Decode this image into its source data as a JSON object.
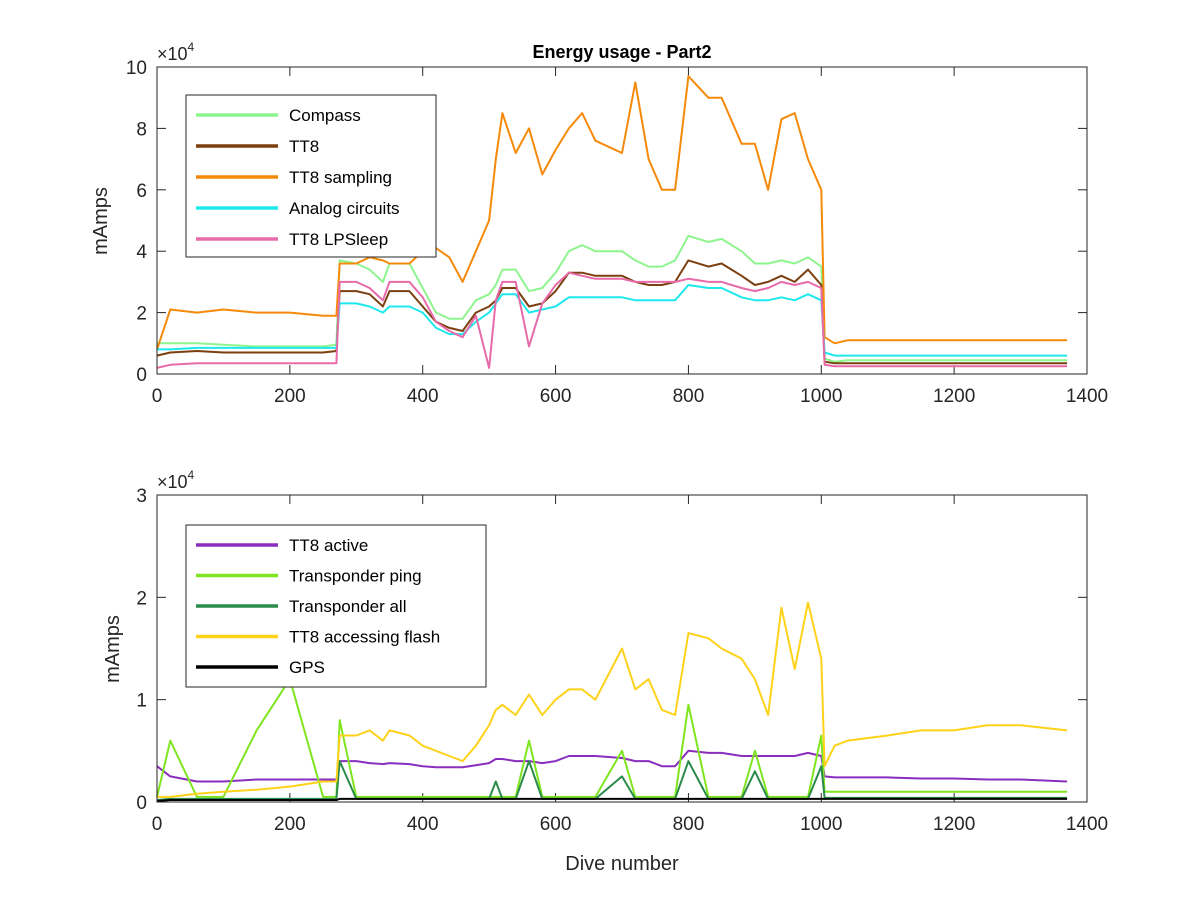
{
  "chart_data": [
    {
      "type": "line",
      "title": "Energy usage - Part2",
      "xlabel": "",
      "ylabel": "mAmps",
      "xlim": [
        0,
        1400
      ],
      "ylim": [
        0,
        100000
      ],
      "exponent_label": "×10",
      "exponent_power": "4",
      "xticks": [
        "0",
        "200",
        "400",
        "600",
        "800",
        "1000",
        "1200",
        "1400"
      ],
      "yticks": [
        "0",
        "2",
        "4",
        "6",
        "8",
        "10"
      ],
      "legend_position": "top-left",
      "x": [
        0,
        20,
        60,
        100,
        150,
        200,
        250,
        270,
        275,
        300,
        320,
        340,
        350,
        380,
        400,
        420,
        440,
        460,
        480,
        500,
        510,
        520,
        540,
        560,
        580,
        600,
        620,
        640,
        660,
        700,
        720,
        740,
        760,
        780,
        800,
        830,
        850,
        880,
        900,
        920,
        940,
        960,
        980,
        1000,
        1005,
        1020,
        1040,
        1100,
        1150,
        1200,
        1250,
        1300,
        1370
      ],
      "series": [
        {
          "name": "Compass",
          "color": "#8ef58e",
          "values": [
            10000,
            10000,
            10000,
            9500,
            9000,
            9000,
            9000,
            9500,
            37000,
            36000,
            34000,
            30000,
            36000,
            36000,
            28000,
            20000,
            18000,
            18000,
            24000,
            26000,
            29000,
            34000,
            34000,
            27000,
            28000,
            33000,
            40000,
            42000,
            40000,
            40000,
            37000,
            35000,
            35000,
            37000,
            45000,
            43000,
            44000,
            40000,
            36000,
            36000,
            37000,
            36000,
            38000,
            35000,
            5000,
            4000,
            4500,
            4500,
            4500,
            4500,
            4500,
            4500,
            4500
          ]
        },
        {
          "name": "TT8",
          "color": "#7b3f10",
          "values": [
            6000,
            7000,
            7500,
            7000,
            7000,
            7000,
            7000,
            7500,
            27000,
            27000,
            26000,
            22000,
            27000,
            27000,
            22000,
            17000,
            15000,
            14000,
            20000,
            22000,
            24000,
            28000,
            28000,
            22000,
            23000,
            27000,
            33000,
            33000,
            32000,
            32000,
            30000,
            29000,
            29000,
            30000,
            37000,
            35000,
            36000,
            32000,
            29000,
            30000,
            32000,
            30000,
            34000,
            29000,
            4000,
            3500,
            3500,
            3500,
            3500,
            3500,
            3500,
            3500,
            3500
          ]
        },
        {
          "name": "TT8 sampling",
          "color": "#f58a0a",
          "values": [
            8000,
            21000,
            20000,
            21000,
            20000,
            20000,
            19000,
            19000,
            36000,
            36000,
            38000,
            37000,
            36000,
            36000,
            40000,
            41000,
            38000,
            30000,
            40000,
            50000,
            70000,
            85000,
            72000,
            80000,
            65000,
            73000,
            80000,
            85000,
            76000,
            72000,
            95000,
            70000,
            60000,
            60000,
            97000,
            90000,
            90000,
            75000,
            75000,
            60000,
            83000,
            85000,
            70000,
            60000,
            12000,
            10000,
            11000,
            11000,
            11000,
            11000,
            11000,
            11000,
            11000
          ]
        },
        {
          "name": "Analog circuits",
          "color": "#1ee8ec",
          "values": [
            8000,
            8000,
            8500,
            8500,
            8500,
            8500,
            8500,
            8500,
            23000,
            23000,
            22000,
            20000,
            22000,
            22000,
            20000,
            15000,
            13000,
            13000,
            17000,
            20000,
            23000,
            26000,
            26000,
            20000,
            21000,
            22000,
            25000,
            25000,
            25000,
            25000,
            24000,
            24000,
            24000,
            24000,
            29000,
            28000,
            28000,
            25000,
            24000,
            24000,
            25000,
            24000,
            26000,
            24000,
            7000,
            6000,
            6000,
            6000,
            6000,
            6000,
            6000,
            6000,
            6000
          ]
        },
        {
          "name": "TT8 LPSleep",
          "color": "#e86aa8",
          "values": [
            2000,
            3000,
            3500,
            3500,
            3500,
            3500,
            3500,
            3500,
            30000,
            30000,
            28000,
            24000,
            30000,
            30000,
            25000,
            17000,
            14000,
            12000,
            19000,
            2000,
            24000,
            30000,
            30000,
            9000,
            23000,
            29000,
            33000,
            32000,
            31000,
            31000,
            30000,
            30000,
            30000,
            30000,
            31000,
            30000,
            30000,
            28000,
            27000,
            28000,
            30000,
            29000,
            30000,
            28000,
            3000,
            2500,
            2500,
            2500,
            2500,
            2500,
            2500,
            2500,
            2500
          ]
        }
      ]
    },
    {
      "type": "line",
      "title": "",
      "xlabel": "Dive number",
      "ylabel": "mAmps",
      "xlim": [
        0,
        1400
      ],
      "ylim": [
        0,
        30000
      ],
      "exponent_label": "×10",
      "exponent_power": "4",
      "xticks": [
        "0",
        "200",
        "400",
        "600",
        "800",
        "1000",
        "1200",
        "1400"
      ],
      "yticks": [
        "0",
        "1",
        "2",
        "3"
      ],
      "legend_position": "top-left",
      "x": [
        0,
        20,
        60,
        100,
        150,
        200,
        250,
        270,
        275,
        300,
        320,
        340,
        350,
        380,
        400,
        420,
        440,
        460,
        480,
        500,
        510,
        520,
        540,
        560,
        580,
        600,
        620,
        640,
        660,
        700,
        720,
        740,
        760,
        780,
        800,
        830,
        850,
        880,
        900,
        920,
        940,
        960,
        980,
        1000,
        1005,
        1020,
        1040,
        1100,
        1150,
        1200,
        1250,
        1300,
        1370
      ],
      "series": [
        {
          "name": "TT8 active",
          "color": "#8a2ebf",
          "values": [
            3500,
            2500,
            2000,
            2000,
            2200,
            2200,
            2200,
            2200,
            4000,
            4000,
            3800,
            3700,
            3800,
            3700,
            3500,
            3400,
            3400,
            3400,
            3600,
            3800,
            4200,
            4200,
            4000,
            4000,
            3800,
            4000,
            4500,
            4500,
            4500,
            4300,
            4000,
            4000,
            3500,
            3500,
            5000,
            4800,
            4800,
            4500,
            4500,
            4500,
            4500,
            4500,
            4800,
            4500,
            2500,
            2400,
            2400,
            2400,
            2300,
            2300,
            2200,
            2200,
            2000
          ]
        },
        {
          "name": "Transponder ping",
          "color": "#7fe51f",
          "values": [
            500,
            6000,
            500,
            500,
            7000,
            12000,
            500,
            500,
            8000,
            500,
            500,
            500,
            500,
            500,
            500,
            500,
            500,
            500,
            500,
            500,
            500,
            500,
            500,
            6000,
            500,
            500,
            500,
            500,
            500,
            5000,
            500,
            500,
            500,
            500,
            9500,
            500,
            500,
            500,
            5000,
            500,
            500,
            500,
            500,
            6500,
            1000,
            1000,
            1000,
            1000,
            1000,
            1000,
            1000,
            1000,
            1000
          ]
        },
        {
          "name": "Transponder all",
          "color": "#2a8b4a",
          "values": [
            200,
            300,
            300,
            300,
            300,
            300,
            300,
            300,
            4000,
            300,
            300,
            300,
            300,
            300,
            300,
            300,
            300,
            300,
            300,
            300,
            2000,
            300,
            300,
            4000,
            300,
            300,
            300,
            300,
            300,
            2500,
            300,
            300,
            300,
            300,
            4000,
            300,
            300,
            300,
            3000,
            300,
            300,
            300,
            300,
            3500,
            400,
            400,
            400,
            400,
            400,
            400,
            400,
            400,
            400
          ]
        },
        {
          "name": "TT8 accessing flash",
          "color": "#ffd21a",
          "values": [
            500,
            500,
            800,
            1000,
            1200,
            1500,
            2000,
            2000,
            6500,
            6500,
            7000,
            6000,
            7000,
            6500,
            5500,
            5000,
            4500,
            4000,
            5500,
            7500,
            9000,
            9500,
            8500,
            10500,
            8500,
            10000,
            11000,
            11000,
            10000,
            15000,
            11000,
            12000,
            9000,
            8500,
            16500,
            16000,
            15000,
            14000,
            12000,
            8500,
            19000,
            13000,
            19500,
            14000,
            3500,
            5500,
            6000,
            6500,
            7000,
            7000,
            7500,
            7500,
            7000
          ]
        },
        {
          "name": "GPS",
          "color": "#000000",
          "values": [
            100,
            200,
            200,
            200,
            200,
            200,
            200,
            200,
            300,
            300,
            300,
            300,
            300,
            300,
            300,
            300,
            300,
            300,
            300,
            300,
            300,
            300,
            300,
            300,
            300,
            300,
            300,
            300,
            300,
            300,
            300,
            300,
            300,
            300,
            300,
            300,
            300,
            300,
            300,
            300,
            300,
            300,
            300,
            300,
            300,
            300,
            300,
            300,
            300,
            300,
            300,
            300,
            300
          ]
        }
      ]
    }
  ]
}
